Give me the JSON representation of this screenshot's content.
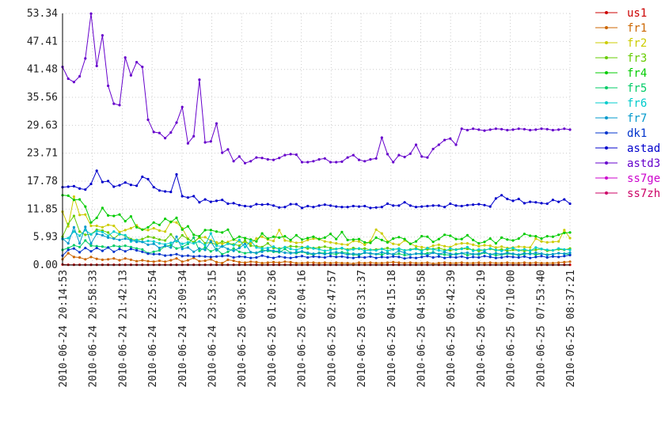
{
  "chart_data": {
    "type": "line",
    "title": "",
    "xlabel": "",
    "ylabel": "",
    "ylim": [
      0,
      53.34
    ],
    "y_ticks": [
      "0.00",
      "5.93",
      "11.85",
      "17.78",
      "23.71",
      "29.63",
      "35.56",
      "41.48",
      "47.41",
      "53.34"
    ],
    "x_ticks": [
      "2010-06-24 20:14:53",
      "2010-06-24 20:58:33",
      "2010-06-24 21:42:13",
      "2010-06-24 22:25:54",
      "2010-06-24 23:09:34",
      "2010-06-24 23:53:15",
      "2010-06-25 00:36:55",
      "2010-06-25 01:20:36",
      "2010-06-25 02:04:16",
      "2010-06-25 02:47:57",
      "2010-06-25 03:31:37",
      "2010-06-25 04:15:18",
      "2010-06-25 04:58:58",
      "2010-06-25 05:42:39",
      "2010-06-25 06:26:19",
      "2010-06-25 07:10:00",
      "2010-06-25 07:53:40",
      "2010-06-25 08:37:21"
    ],
    "grid": true,
    "legend_position": "right",
    "series": [
      {
        "name": "us1",
        "color": "#cc0000",
        "values": [
          0.1,
          0.05,
          0.05,
          0.05,
          0.05,
          0.05,
          0.05,
          0.05,
          0.05,
          0.05,
          0.05,
          0.05,
          0.05,
          0.05,
          0.05,
          0.05,
          0.05,
          0.05,
          0.05,
          0.05,
          0.05,
          0.05,
          0.05,
          0.05,
          0.05,
          0.05,
          0.05,
          0.05,
          0.05,
          0.05,
          0.05,
          0.05,
          0.05,
          0.05,
          0.05,
          0.05,
          0.05,
          0.05,
          0.05,
          0.05,
          0.05,
          0.05,
          0.05,
          0.05,
          0.05,
          0.05,
          0.05,
          0.05,
          0.05,
          0.05,
          0.05,
          0.05,
          0.05,
          0.05,
          0.05,
          0.05,
          0.05,
          0.05,
          0.05,
          0.05,
          0.05,
          0.05,
          0.05,
          0.05,
          0.05,
          0.05,
          0.05,
          0.05,
          0.05,
          0.05,
          0.05,
          0.05,
          0.05,
          0.05,
          0.05,
          0.05,
          0.05,
          0.05,
          0.05,
          0.05,
          0.05,
          0.05,
          0.05,
          0.05,
          0.05,
          0.05,
          0.05,
          0.05,
          0.05,
          0.05
        ]
      },
      {
        "name": "fr1",
        "color": "#cc6600",
        "values": [
          1.2,
          2.5,
          1.7,
          1.6,
          1.2,
          1.7,
          1.3,
          1.1,
          1.2,
          1.4,
          1.0,
          1.4,
          1.1,
          0.8,
          1.0,
          0.8,
          0.7,
          0.9,
          0.7,
          1.0,
          1.4,
          0.7,
          1.0,
          1.5,
          0.8,
          0.9,
          1.2,
          0.6,
          0.4,
          1.1,
          0.9,
          0.6,
          0.5,
          0.7,
          0.6,
          0.4,
          0.5,
          0.6,
          0.5,
          0.7,
          0.6,
          0.4,
          0.4,
          0.5,
          0.5,
          0.4,
          0.5,
          0.4,
          0.5,
          0.4,
          0.4,
          0.3,
          0.5,
          0.4,
          0.5,
          0.4,
          0.4,
          0.5,
          0.6,
          0.5,
          0.4,
          0.5,
          0.4,
          0.4,
          0.5,
          0.3,
          0.4,
          0.5,
          0.4,
          0.4,
          0.5,
          0.4,
          0.4,
          0.5,
          0.4,
          0.5,
          0.4,
          0.4,
          0.5,
          0.4,
          0.4,
          0.5,
          0.4,
          0.5,
          0.4,
          0.4,
          0.4,
          0.5,
          0.6,
          0.7
        ]
      },
      {
        "name": "fr2",
        "color": "#cccc00",
        "values": [
          11.3,
          8.2,
          14.5,
          10.6,
          10.7,
          8.3,
          8.3,
          8.0,
          8.5,
          8.3,
          7.0,
          7.4,
          7.8,
          8.4,
          7.5,
          7.4,
          7.8,
          7.3,
          7.1,
          9.2,
          9.0,
          7.8,
          5.6,
          4.8,
          5.8,
          5.9,
          5.2,
          4.8,
          4.5,
          4.9,
          5.4,
          5.0,
          4.7,
          4.6,
          5.6,
          6.0,
          5.4,
          5.1,
          7.4,
          5.2,
          5.0,
          4.7,
          4.8,
          5.3,
          5.6,
          5.5,
          5.0,
          4.8,
          4.6,
          4.4,
          4.3,
          5.1,
          5.0,
          4.3,
          5.1,
          7.5,
          6.7,
          5.0,
          4.5,
          4.3,
          5.2,
          4.5,
          4.0,
          3.8,
          3.6,
          4.1,
          4.3,
          4.0,
          3.8,
          4.4,
          4.6,
          4.6,
          4.3,
          4.0,
          4.2,
          4.1,
          3.7,
          3.9,
          3.6,
          3.7,
          3.9,
          3.8,
          3.7,
          5.6,
          5.0,
          4.8,
          4.9,
          5.0,
          7.4,
          5.7
        ]
      },
      {
        "name": "fr3",
        "color": "#66cc00",
        "values": [
          6.0,
          8.7,
          10.4,
          7.1,
          6.4,
          6.5,
          7.5,
          7.3,
          6.9,
          5.6,
          6.6,
          6.2,
          5.5,
          5.3,
          5.5,
          6.0,
          5.8,
          5.4,
          5.2,
          6.5,
          5.0,
          6.3,
          5.5,
          4.8,
          5.9,
          4.6,
          4.8,
          4.3,
          5.0,
          4.6,
          4.4,
          4.1,
          5.2,
          4.1,
          4.0,
          3.8,
          4.6,
          3.6,
          3.5,
          3.7,
          4.0,
          3.9,
          3.8,
          3.5,
          3.6,
          3.7,
          3.9,
          3.6,
          3.4,
          3.5,
          3.3,
          3.6,
          3.4,
          3.5,
          3.2,
          3.3,
          3.4,
          3.6,
          3.3,
          3.4,
          3.1,
          3.3,
          3.5,
          3.2,
          3.3,
          3.4,
          3.6,
          3.2,
          3.1,
          3.3,
          3.5,
          3.4,
          3.2,
          3.0,
          3.2,
          3.4,
          3.1,
          3.3,
          3.0,
          3.2,
          3.1,
          3.0,
          3.1,
          3.2,
          3.4,
          3.0,
          3.1,
          3.3,
          3.2,
          3.5
        ]
      },
      {
        "name": "fr4",
        "color": "#00cc00",
        "values": [
          14.8,
          14.7,
          13.8,
          13.9,
          12.4,
          9.0,
          10.0,
          12.1,
          10.5,
          10.4,
          10.7,
          9.3,
          10.3,
          8.0,
          7.5,
          8.0,
          9.0,
          8.5,
          9.8,
          9.1,
          10.0,
          7.5,
          8.2,
          6.4,
          6.1,
          7.4,
          7.4,
          7.1,
          6.9,
          7.5,
          5.4,
          6.0,
          5.7,
          5.4,
          5.0,
          6.7,
          5.6,
          6.0,
          5.8,
          6.1,
          5.3,
          6.3,
          5.4,
          5.7,
          6.0,
          5.5,
          5.8,
          6.6,
          5.5,
          7.0,
          5.3,
          5.4,
          5.5,
          4.8,
          4.7,
          5.8,
          5.3,
          4.8,
          5.6,
          5.9,
          5.5,
          4.5,
          5.0,
          6.1,
          6.0,
          4.9,
          5.5,
          6.4,
          6.2,
          5.5,
          5.5,
          6.3,
          5.3,
          4.6,
          4.9,
          5.6,
          4.6,
          5.8,
          5.4,
          5.2,
          5.6,
          6.6,
          6.2,
          6.1,
          5.6,
          6.1,
          6.0,
          6.4,
          6.8,
          6.9
        ]
      },
      {
        "name": "fr5",
        "color": "#00cc66",
        "values": [
          3.2,
          3.6,
          4.2,
          3.8,
          5.2,
          4.1,
          4.0,
          3.9,
          3.7,
          4.1,
          3.9,
          4.1,
          3.8,
          3.5,
          3.3,
          2.5,
          2.8,
          3.1,
          4.0,
          4.2,
          3.5,
          3.8,
          4.5,
          5.8,
          3.0,
          3.7,
          2.9,
          3.4,
          2.3,
          2.8,
          3.5,
          2.8,
          2.5,
          2.7,
          2.5,
          3.2,
          3.0,
          2.8,
          2.7,
          3.4,
          2.6,
          2.5,
          2.8,
          2.4,
          2.2,
          2.6,
          2.5,
          2.4,
          2.3,
          2.7,
          2.5,
          2.2,
          2.1,
          2.6,
          2.4,
          2.3,
          2.2,
          2.6,
          2.2,
          2.4,
          2.1,
          2.2,
          2.4,
          2.3,
          2.5,
          2.7,
          2.3,
          2.2,
          2.1,
          2.4,
          2.5,
          2.1,
          2.3,
          2.2,
          2.6,
          2.3,
          2.1,
          2.2,
          2.4,
          2.3,
          2.1,
          2.3,
          2.5,
          2.2,
          2.4,
          2.2,
          2.3,
          2.5,
          2.4,
          2.2
        ]
      },
      {
        "name": "fr6",
        "color": "#00cccc",
        "values": [
          5.5,
          5.7,
          7.1,
          6.2,
          7.4,
          6.5,
          7.2,
          7.0,
          6.2,
          7.1,
          6.5,
          6.3,
          5.0,
          5.3,
          4.9,
          5.1,
          5.0,
          4.6,
          4.4,
          4.7,
          5.1,
          4.5,
          4.8,
          4.6,
          5.0,
          4.2,
          6.7,
          4.1,
          3.9,
          4.5,
          4.2,
          5.3,
          3.8,
          5.1,
          3.7,
          3.5,
          3.6,
          3.9,
          3.3,
          3.8,
          3.4,
          3.2,
          3.6,
          3.9,
          3.5,
          3.3,
          3.0,
          3.2,
          3.4,
          3.6,
          3.1,
          3.3,
          3.5,
          3.0,
          3.2,
          3.1,
          3.4,
          3.0,
          3.3,
          3.5,
          3.1,
          3.2,
          3.4,
          3.0,
          3.6,
          3.3,
          3.1,
          2.9,
          3.5,
          3.2,
          3.4,
          3.8,
          3.0,
          3.3,
          3.1,
          3.5,
          3.2,
          3.0,
          3.4,
          3.6,
          3.1,
          3.3,
          3.0,
          3.7,
          3.4,
          3.2,
          3.1,
          3.5,
          3.3,
          3.2
        ]
      },
      {
        "name": "fr7",
        "color": "#0099cc",
        "values": [
          5.6,
          4.6,
          8.0,
          4.6,
          8.1,
          4.6,
          6.6,
          6.3,
          5.8,
          5.6,
          5.3,
          5.6,
          5.3,
          4.9,
          4.9,
          4.3,
          4.5,
          3.6,
          4.1,
          3.7,
          6.0,
          3.4,
          3.7,
          2.8,
          3.5,
          3.2,
          5.0,
          3.1,
          4.0,
          3.4,
          3.0,
          3.6,
          4.5,
          2.7,
          2.6,
          2.8,
          3.2,
          3.0,
          2.9,
          2.6,
          2.5,
          2.7,
          2.9,
          2.6,
          2.4,
          2.5,
          2.3,
          2.6,
          2.7,
          2.5,
          2.2,
          2.4,
          2.3,
          2.6,
          2.5,
          2.3,
          2.7,
          2.4,
          2.3,
          3.0,
          2.6,
          2.2,
          2.4,
          2.5,
          2.1,
          2.6,
          2.3,
          2.7,
          2.4,
          2.2,
          2.5,
          2.6,
          2.3,
          2.4,
          2.8,
          2.2,
          2.5,
          2.3,
          2.6,
          2.4,
          2.2,
          2.5,
          2.3,
          2.6,
          2.4,
          2.1,
          2.3,
          2.5,
          2.4,
          2.6
        ]
      },
      {
        "name": "dk1",
        "color": "#0033cc",
        "values": [
          2.0,
          3.2,
          3.5,
          2.7,
          3.6,
          2.9,
          3.6,
          3.0,
          3.7,
          2.8,
          3.4,
          2.9,
          3.4,
          3.1,
          2.8,
          2.4,
          2.3,
          2.3,
          2.0,
          2.1,
          2.3,
          1.9,
          2.0,
          1.8,
          1.9,
          1.8,
          1.7,
          1.8,
          1.9,
          2.0,
          1.6,
          1.8,
          1.7,
          1.5,
          1.6,
          2.0,
          1.7,
          1.5,
          1.8,
          1.6,
          1.5,
          1.7,
          1.9,
          1.6,
          1.8,
          1.7,
          1.6,
          1.9,
          1.7,
          1.8,
          1.6,
          1.5,
          1.7,
          1.6,
          1.8,
          1.5,
          1.7,
          1.6,
          1.8,
          1.7,
          1.4,
          1.6,
          1.5,
          1.7,
          1.9,
          1.6,
          1.8,
          1.5,
          1.7,
          1.6,
          1.8,
          1.5,
          1.7,
          1.6,
          1.9,
          1.7,
          1.5,
          1.6,
          1.8,
          1.7,
          1.6,
          1.8,
          1.5,
          1.7,
          1.9,
          1.6,
          1.8,
          1.7,
          1.9,
          2.1
        ]
      },
      {
        "name": "astad",
        "color": "#0000cc",
        "values": [
          16.5,
          16.6,
          16.7,
          16.2,
          16.0,
          17.2,
          20.0,
          17.6,
          17.8,
          16.6,
          16.9,
          17.5,
          17.0,
          16.8,
          18.7,
          18.2,
          16.5,
          15.8,
          15.6,
          15.5,
          19.2,
          14.6,
          14.3,
          14.6,
          13.3,
          13.9,
          13.4,
          13.6,
          13.8,
          13.0,
          13.1,
          12.7,
          12.5,
          12.4,
          12.9,
          12.8,
          12.9,
          12.6,
          12.2,
          12.3,
          12.9,
          12.9,
          12.1,
          12.5,
          12.3,
          12.6,
          12.8,
          12.6,
          12.4,
          12.3,
          12.3,
          12.5,
          12.4,
          12.5,
          12.1,
          12.2,
          12.3,
          13.0,
          12.6,
          12.6,
          13.3,
          12.6,
          12.3,
          12.4,
          12.5,
          12.6,
          12.6,
          12.3,
          13.0,
          12.6,
          12.5,
          12.7,
          12.8,
          12.9,
          12.7,
          12.4,
          14.1,
          14.8,
          14.0,
          13.6,
          14.0,
          13.1,
          13.4,
          13.3,
          13.1,
          13.0,
          13.8,
          13.4,
          13.9,
          13.0
        ]
      },
      {
        "name": "astd3",
        "color": "#6600cc",
        "values": [
          42.0,
          39.5,
          38.8,
          40.0,
          43.8,
          53.3,
          42.2,
          48.7,
          38.0,
          34.2,
          33.9,
          44.0,
          40.2,
          43.0,
          42.0,
          30.8,
          28.2,
          28.0,
          26.9,
          28.1,
          30.2,
          33.5,
          25.8,
          27.3,
          39.3,
          26.0,
          26.2,
          30.0,
          23.8,
          24.5,
          22.0,
          23.0,
          21.6,
          22.0,
          22.8,
          22.7,
          22.4,
          22.3,
          22.7,
          23.3,
          23.5,
          23.4,
          21.8,
          21.8,
          22.0,
          22.4,
          22.6,
          21.8,
          21.8,
          21.9,
          22.8,
          23.3,
          22.3,
          22.0,
          22.4,
          22.6,
          27.0,
          23.5,
          21.8,
          23.3,
          22.9,
          23.6,
          25.5,
          23.0,
          22.8,
          24.6,
          25.5,
          26.5,
          26.8,
          25.5,
          28.9,
          28.6,
          28.9,
          28.7,
          28.5,
          28.7,
          28.9,
          28.8,
          28.6,
          28.7,
          28.9,
          28.8,
          28.6,
          28.7,
          28.9,
          28.8,
          28.6,
          28.7,
          28.9,
          28.7
        ]
      },
      {
        "name": "ss7ge",
        "color": "#cc00cc",
        "values": []
      },
      {
        "name": "ss7zh",
        "color": "#cc0066",
        "values": []
      }
    ]
  }
}
